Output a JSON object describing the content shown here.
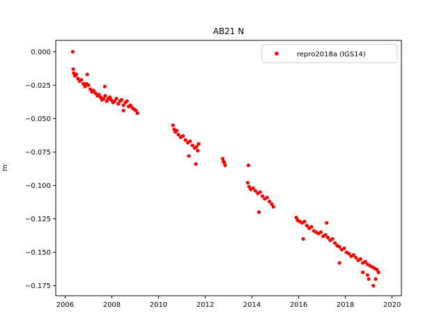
{
  "chart_data": {
    "type": "scatter",
    "title": "AB21 N",
    "xlabel": "",
    "ylabel": "m",
    "xlim": [
      2005.6,
      2020.4
    ],
    "ylim": [
      -0.1825,
      0.0085
    ],
    "x_ticks": [
      2006,
      2008,
      2010,
      2012,
      2014,
      2016,
      2018,
      2020
    ],
    "y_ticks": [
      0.0,
      -0.025,
      -0.05,
      -0.075,
      -0.1,
      -0.125,
      -0.15,
      -0.175
    ],
    "y_tick_labels": [
      "0.000",
      "−0.025",
      "−0.050",
      "−0.075",
      "−0.100",
      "−0.125",
      "−0.150",
      "−0.175"
    ],
    "grid": false,
    "legend_position": "top-right",
    "series": [
      {
        "name": "repro2018a (IGS14)",
        "color": "#ff0000",
        "marker": "circle",
        "x": [
          2006.33,
          2006.35,
          2006.37,
          2006.42,
          2006.48,
          2006.55,
          2006.62,
          2006.7,
          2006.78,
          2006.85,
          2006.92,
          2007.0,
          2007.08,
          2007.15,
          2007.22,
          2007.3,
          2007.38,
          2007.45,
          2007.52,
          2007.58,
          2007.65,
          2007.72,
          2007.78,
          2007.85,
          2007.92,
          2007.97,
          2008.05,
          2008.12,
          2008.2,
          2008.28,
          2008.35,
          2008.42,
          2008.5,
          2008.58,
          2008.65,
          2008.72,
          2008.8,
          2008.88,
          2008.95,
          2009.03,
          2009.1,
          2010.62,
          2010.67,
          2010.72,
          2010.78,
          2010.85,
          2010.95,
          2011.05,
          2011.15,
          2011.25,
          2011.35,
          2011.45,
          2011.55,
          2011.62,
          2011.68,
          2011.72,
          2012.75,
          2012.78,
          2012.82,
          2012.85,
          2013.82,
          2013.88,
          2013.95,
          2014.05,
          2014.15,
          2014.25,
          2014.35,
          2014.45,
          2014.55,
          2014.65,
          2014.75,
          2014.85,
          2014.92,
          2015.9,
          2015.95,
          2016.05,
          2016.15,
          2016.25,
          2016.35,
          2016.45,
          2016.55,
          2016.65,
          2016.75,
          2016.85,
          2016.95,
          2017.05,
          2017.15,
          2017.25,
          2017.35,
          2017.45,
          2017.55,
          2017.65,
          2017.75,
          2017.85,
          2017.95,
          2018.05,
          2018.15,
          2018.25,
          2018.35,
          2018.45,
          2018.55,
          2018.65,
          2018.75,
          2018.85,
          2018.95,
          2019.05,
          2019.15,
          2019.25,
          2019.35,
          2019.42,
          2006.95,
          2007.7,
          2008.5,
          2011.3,
          2011.6,
          2013.85,
          2014.3,
          2016.2,
          2017.2,
          2017.75,
          2018.75,
          2019.0,
          2019.2,
          2019.3,
          2017.65,
          2018.95
        ],
        "y": [
          0.0,
          -0.013,
          -0.016,
          -0.018,
          -0.017,
          -0.02,
          -0.022,
          -0.021,
          -0.024,
          -0.026,
          -0.024,
          -0.025,
          -0.028,
          -0.03,
          -0.029,
          -0.031,
          -0.033,
          -0.032,
          -0.034,
          -0.036,
          -0.035,
          -0.033,
          -0.037,
          -0.035,
          -0.034,
          -0.036,
          -0.038,
          -0.037,
          -0.035,
          -0.039,
          -0.037,
          -0.036,
          -0.04,
          -0.038,
          -0.037,
          -0.041,
          -0.04,
          -0.042,
          -0.043,
          -0.044,
          -0.046,
          -0.055,
          -0.058,
          -0.06,
          -0.059,
          -0.062,
          -0.064,
          -0.063,
          -0.066,
          -0.068,
          -0.067,
          -0.07,
          -0.072,
          -0.071,
          -0.074,
          -0.069,
          -0.08,
          -0.082,
          -0.083,
          -0.085,
          -0.098,
          -0.101,
          -0.103,
          -0.102,
          -0.104,
          -0.106,
          -0.105,
          -0.108,
          -0.11,
          -0.109,
          -0.112,
          -0.114,
          -0.116,
          -0.124,
          -0.126,
          -0.127,
          -0.128,
          -0.127,
          -0.13,
          -0.132,
          -0.131,
          -0.134,
          -0.135,
          -0.136,
          -0.135,
          -0.138,
          -0.137,
          -0.139,
          -0.141,
          -0.14,
          -0.143,
          -0.145,
          -0.146,
          -0.148,
          -0.147,
          -0.15,
          -0.151,
          -0.153,
          -0.152,
          -0.154,
          -0.156,
          -0.155,
          -0.158,
          -0.157,
          -0.159,
          -0.16,
          -0.161,
          -0.162,
          -0.163,
          -0.165,
          -0.017,
          -0.026,
          -0.044,
          -0.078,
          -0.084,
          -0.085,
          -0.12,
          -0.14,
          -0.128,
          -0.158,
          -0.165,
          -0.17,
          -0.175,
          -0.17,
          -0.145,
          -0.167
        ]
      }
    ]
  }
}
